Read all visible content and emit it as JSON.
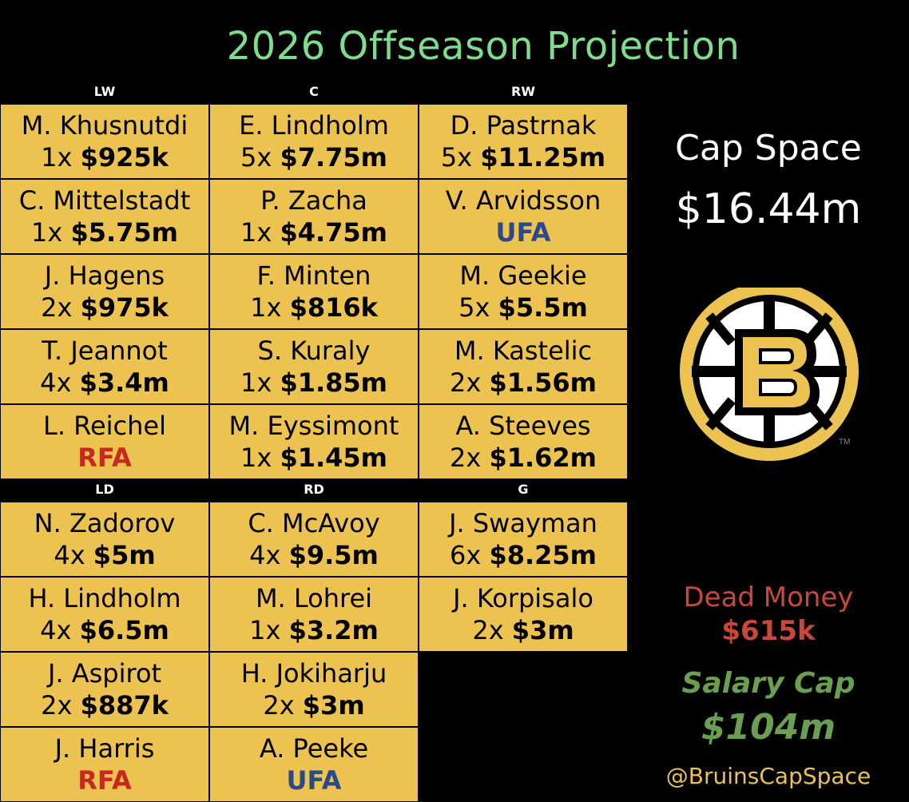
{
  "title": "2026 Offseason Projection",
  "forwards": {
    "headers": [
      "LW",
      "C",
      "RW"
    ],
    "rows": [
      [
        {
          "name": "M. Khusnutdi",
          "years": "1x",
          "amount": "$925k"
        },
        {
          "name": "E. Lindholm",
          "years": "5x",
          "amount": "$7.75m"
        },
        {
          "name": "D. Pastrnak",
          "years": "5x",
          "amount": "$11.25m"
        }
      ],
      [
        {
          "name": "C. Mittelstadt",
          "years": "1x",
          "amount": "$5.75m"
        },
        {
          "name": "P. Zacha",
          "years": "1x",
          "amount": "$4.75m"
        },
        {
          "name": "V. Arvidsson",
          "status": "UFA"
        }
      ],
      [
        {
          "name": "J. Hagens",
          "years": "2x",
          "amount": "$975k"
        },
        {
          "name": "F. Minten",
          "years": "1x",
          "amount": "$816k"
        },
        {
          "name": "M. Geekie",
          "years": "5x",
          "amount": "$5.5m"
        }
      ],
      [
        {
          "name": "T. Jeannot",
          "years": "4x",
          "amount": "$3.4m"
        },
        {
          "name": "S. Kuraly",
          "years": "1x",
          "amount": "$1.85m"
        },
        {
          "name": "M. Kastelic",
          "years": "2x",
          "amount": "$1.56m"
        }
      ],
      [
        {
          "name": "L. Reichel",
          "status": "RFA"
        },
        {
          "name": "M. Eyssimont",
          "years": "1x",
          "amount": "$1.45m"
        },
        {
          "name": "A. Steeves",
          "years": "2x",
          "amount": "$1.62m"
        }
      ]
    ]
  },
  "defense": {
    "headers": [
      "LD",
      "RD",
      "G"
    ],
    "rows": [
      [
        {
          "name": "N. Zadorov",
          "years": "4x",
          "amount": "$5m"
        },
        {
          "name": "C. McAvoy",
          "years": "4x",
          "amount": "$9.5m"
        },
        {
          "name": "J. Swayman",
          "years": "6x",
          "amount": "$8.25m"
        }
      ],
      [
        {
          "name": "H. Lindholm",
          "years": "4x",
          "amount": "$6.5m"
        },
        {
          "name": "M. Lohrei",
          "years": "1x",
          "amount": "$3.2m"
        },
        {
          "name": "J. Korpisalo",
          "years": "2x",
          "amount": "$3m"
        }
      ],
      [
        {
          "name": "J. Aspirot",
          "years": "2x",
          "amount": "$887k"
        },
        {
          "name": "H. Jokiharju",
          "years": "2x",
          "amount": "$3m"
        },
        null
      ],
      [
        {
          "name": "J. Harris",
          "status": "RFA"
        },
        {
          "name": "A. Peeke",
          "status": "UFA"
        },
        null
      ]
    ]
  },
  "cap_space": {
    "label": "Cap Space",
    "value": "$16.44m"
  },
  "dead_money": {
    "label": "Dead Money",
    "value": "$615k"
  },
  "salary_cap": {
    "label": "Salary Cap",
    "value": "$104m"
  },
  "handle": "@BruinsCapSpace",
  "logo": {
    "icon": "bruins-b-logo-icon",
    "trademark": "TM"
  },
  "colors": {
    "cell": "#ecc350",
    "title": "#7edc8e",
    "rfa": "#c8281f",
    "ufa": "#2b4a8c",
    "dead": "#c9473b",
    "salary": "#6a9e50"
  }
}
